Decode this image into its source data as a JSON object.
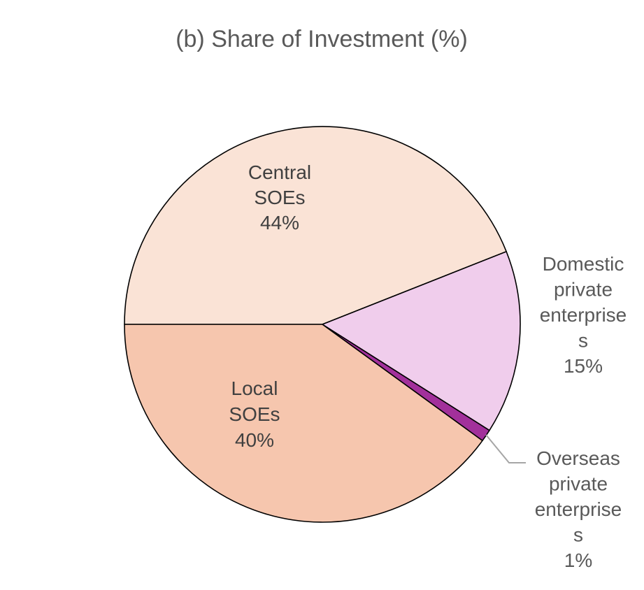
{
  "chart_data": {
    "type": "pie",
    "title": "(b) Share of Investment (%)",
    "start_angle_deg": 180,
    "slices": [
      {
        "lines": [
          "Central",
          "SOEs",
          "44%"
        ],
        "value": 44,
        "color": "#FAE3D6"
      },
      {
        "lines": [
          "Domestic",
          "private",
          "enterprise",
          "s",
          "15%"
        ],
        "value": 15,
        "color": "#F0CDEC"
      },
      {
        "lines": [
          "Overseas",
          "private",
          "enterprise",
          "s",
          "1%"
        ],
        "value": 1,
        "color": "#A2309B"
      },
      {
        "lines": [
          "Local",
          "SOEs",
          "40%"
        ],
        "value": 40,
        "color": "#F6C6AE"
      }
    ]
  }
}
